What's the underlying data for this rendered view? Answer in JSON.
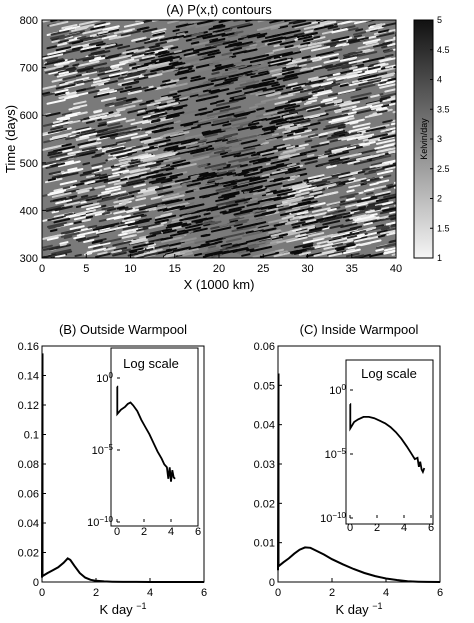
{
  "chart_data": [
    {
      "panel": "A",
      "type": "heatmap",
      "title": "(A) P(x,t) contours",
      "xlabel": "X (1000 km)",
      "ylabel": "Time (days)",
      "xlim": [
        0,
        40
      ],
      "ylim": [
        300,
        800
      ],
      "xticks": [
        0,
        5,
        10,
        15,
        20,
        25,
        30,
        35,
        40
      ],
      "yticks": [
        300,
        400,
        500,
        600,
        700,
        800
      ],
      "colormap": "gray-reversed",
      "colorbar": {
        "label": "Kelvin/day",
        "range": [
          1,
          5
        ],
        "ticks": [
          "1",
          "1.5",
          "2",
          "2.5",
          "3",
          "3.5",
          "4",
          "4.5",
          "5"
        ]
      },
      "warmpool_center_x": 20
    },
    {
      "panel": "B",
      "type": "line",
      "title": "(B) Outside Warmpool",
      "xlabel": "K day",
      "xlabel_exponent": "−1",
      "xlim": [
        0,
        6
      ],
      "ylim": [
        0,
        0.16
      ],
      "xticks": [
        0,
        2,
        4,
        6
      ],
      "yticks": [
        0,
        0.02,
        0.04,
        0.06,
        0.08,
        0.1,
        0.12,
        0.14,
        0.16
      ],
      "ytick_labels": [
        "0",
        "0.02",
        "0.04",
        "0.06",
        "0.08",
        "0.1",
        "0.12",
        "0.14",
        "0.16"
      ],
      "x": [
        0,
        0.02,
        0.02,
        0.2,
        0.4,
        0.6,
        0.8,
        0.95,
        1.05,
        1.2,
        1.4,
        1.6,
        1.8,
        2.0,
        2.3,
        2.6,
        3.0,
        3.5,
        4.0,
        4.5,
        5.0,
        5.5,
        6.0
      ],
      "y": [
        0.003,
        0.155,
        0.004,
        0.006,
        0.008,
        0.01,
        0.013,
        0.016,
        0.015,
        0.011,
        0.006,
        0.003,
        0.0015,
        0.0008,
        0.0004,
        0.0002,
        0.0001,
        4e-05,
        2e-05,
        0,
        0,
        0,
        0
      ],
      "inset": {
        "title": "Log scale",
        "yscale": "log",
        "xlim": [
          0,
          6
        ],
        "ylim_exp": [
          -10,
          0
        ],
        "xticks": [
          0,
          2,
          4,
          6
        ],
        "yticks_exp": [
          0,
          -5,
          -10
        ],
        "x": [
          0,
          0.02,
          0.02,
          0.3,
          0.6,
          0.8,
          1.0,
          1.2,
          1.5,
          1.8,
          2.1,
          2.4,
          2.7,
          3.0,
          3.3,
          3.5,
          3.7,
          3.8,
          3.9,
          4.0,
          4.1,
          4.2,
          4.3
        ],
        "log10y": [
          -0.6,
          -0.6,
          -2.5,
          -2.2,
          -2.0,
          -1.8,
          -1.7,
          -1.9,
          -2.3,
          -2.9,
          -3.4,
          -3.9,
          -4.5,
          -5.1,
          -5.6,
          -6.0,
          -6.2,
          -7.0,
          -6.2,
          -7.2,
          -6.4,
          -6.9,
          -7.0
        ]
      }
    },
    {
      "panel": "C",
      "type": "line",
      "title": "(C) Inside Warmpool",
      "xlabel": "K day",
      "xlabel_exponent": "−1",
      "xlim": [
        0,
        6
      ],
      "ylim": [
        0,
        0.06
      ],
      "xticks": [
        0,
        2,
        4,
        6
      ],
      "yticks": [
        0,
        0.01,
        0.02,
        0.03,
        0.04,
        0.05,
        0.06
      ],
      "ytick_labels": [
        "0",
        "0.01",
        "0.02",
        "0.03",
        "0.04",
        "0.05",
        "0.06"
      ],
      "x": [
        0,
        0.02,
        0.02,
        0.2,
        0.4,
        0.6,
        0.8,
        1.0,
        1.2,
        1.4,
        1.7,
        2.0,
        2.4,
        2.8,
        3.2,
        3.6,
        4.0,
        4.4,
        4.8,
        5.2,
        5.5,
        6.0
      ],
      "y": [
        0.003,
        0.053,
        0.004,
        0.005,
        0.006,
        0.0072,
        0.0082,
        0.0088,
        0.0087,
        0.008,
        0.007,
        0.0058,
        0.0045,
        0.0033,
        0.0023,
        0.0015,
        0.0009,
        0.0005,
        0.0002,
        8e-05,
        2e-05,
        0
      ],
      "inset": {
        "title": "Log scale",
        "yscale": "log",
        "xlim": [
          0,
          6
        ],
        "ylim_exp": [
          -10,
          0
        ],
        "xticks": [
          0,
          2,
          4,
          6
        ],
        "yticks_exp": [
          0,
          -5,
          -10
        ],
        "x": [
          0,
          0.02,
          0.02,
          0.3,
          0.6,
          1.0,
          1.4,
          1.8,
          2.2,
          2.6,
          3.0,
          3.4,
          3.8,
          4.2,
          4.5,
          4.8,
          5.0,
          5.1,
          5.2,
          5.3,
          5.4,
          5.5
        ],
        "log10y": [
          -1.1,
          -1.1,
          -3.0,
          -2.5,
          -2.3,
          -2.1,
          -2.1,
          -2.2,
          -2.4,
          -2.6,
          -2.9,
          -3.3,
          -3.8,
          -4.4,
          -4.9,
          -5.4,
          -5.3,
          -6.0,
          -5.6,
          -6.2,
          -6.4,
          -6.1
        ]
      }
    }
  ]
}
